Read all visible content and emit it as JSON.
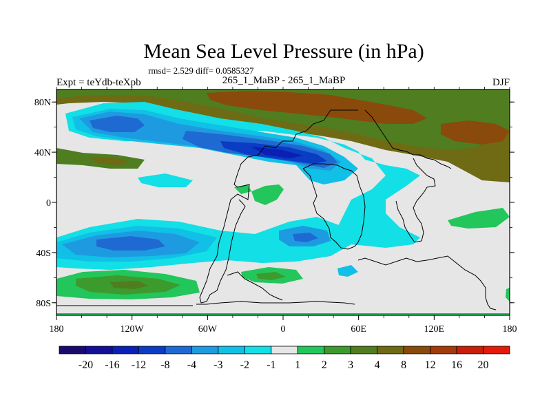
{
  "chart_data": {
    "type": "heatmap",
    "title": "Mean Sea Level Pressure (in hPa)",
    "subtitle_stats": "rmsd= 2.529 diff= 0.0585327",
    "left_label": "Expt = teYdb-teXpb",
    "center_label": "265_1_MaBP - 265_1_MaBP",
    "right_label": "DJF",
    "x_ticks": [
      "180",
      "120W",
      "60W",
      "0",
      "60E",
      "120E",
      "180"
    ],
    "x_tick_values": [
      -180,
      -120,
      -60,
      0,
      60,
      120,
      180
    ],
    "y_ticks": [
      "80N",
      "40N",
      "0",
      "40S",
      "80S"
    ],
    "y_tick_values": [
      80,
      40,
      0,
      -40,
      -80
    ],
    "xlim": [
      -180,
      180
    ],
    "ylim": [
      -90,
      90
    ],
    "colorbar": {
      "labels": [
        "-20",
        "-16",
        "-12",
        "-8",
        "-4",
        "-3",
        "-2",
        "-1",
        "1",
        "2",
        "3",
        "4",
        "8",
        "12",
        "16",
        "20"
      ],
      "colors": [
        "#1a0a6e",
        "#130f96",
        "#0a1fb4",
        "#0b3cc4",
        "#1e6ad2",
        "#1e9be0",
        "#10c0e6",
        "#12dfe6",
        "#e6e6e6",
        "#22c65a",
        "#3d9a2c",
        "#4f7d20",
        "#6f6a14",
        "#8a4a0c",
        "#a33a0a",
        "#c81e0a",
        "#e41a0a"
      ]
    },
    "fields": [
      {
        "level": "4",
        "color": "#6f6a14",
        "lon": [
          -180,
          -60,
          40,
          100,
          180
        ],
        "lat": [
          60,
          75,
          65,
          60,
          60
        ],
        "note": "high-latitude northern positive band"
      },
      {
        "level": "8",
        "color": "#8a4a0c",
        "lon": [
          -40,
          20,
          120,
          170
        ],
        "lat": [
          80,
          78,
          70,
          60
        ],
        "note": "northern maximum"
      },
      {
        "level": "-4",
        "color": "#1e6ad2",
        "lon": [
          -150,
          -60,
          0,
          40
        ],
        "lat": [
          60,
          50,
          40,
          30
        ],
        "note": "northern mid-latitude negative band"
      },
      {
        "level": "-8",
        "color": "#0b3cc4",
        "lon": [
          -40,
          0,
          30
        ],
        "lat": [
          45,
          40,
          35
        ],
        "note": "northern negative minimum"
      },
      {
        "level": "-2",
        "color": "#10c0e6",
        "lon": [
          0,
          60,
          80
        ],
        "lat": [
          10,
          0,
          -20
        ],
        "note": "equatorial African / Indian negative"
      },
      {
        "level": "-3",
        "color": "#1e9be0",
        "lon": [
          -170,
          -100,
          -40,
          20
        ],
        "lat": [
          -30,
          -40,
          -40,
          -35
        ],
        "note": "southern negative band"
      },
      {
        "level": "2",
        "color": "#22c65a",
        "lon": [
          -170,
          -120,
          120,
          175
        ],
        "lat": [
          -60,
          -65,
          -15,
          -50
        ],
        "note": "southern positive patches"
      }
    ]
  }
}
